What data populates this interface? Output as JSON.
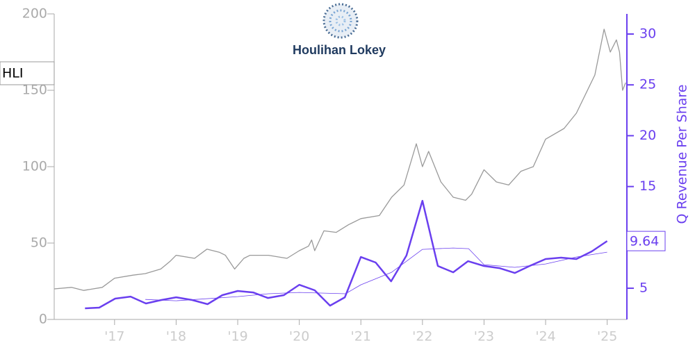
{
  "chart_data": {
    "type": "line",
    "logo_text": "Houlihan Lokey",
    "y2_label": "Q Revenue Per Share",
    "xlim": [
      2016.02,
      2025.32
    ],
    "xticks": [
      {
        "value": 2017,
        "label": "'17"
      },
      {
        "value": 2018,
        "label": "'18"
      },
      {
        "value": 2019,
        "label": "'19"
      },
      {
        "value": 2020,
        "label": "'20"
      },
      {
        "value": 2021,
        "label": "'21"
      },
      {
        "value": 2022,
        "label": "'22"
      },
      {
        "value": 2023,
        "label": "'23"
      },
      {
        "value": 2024,
        "label": "'24"
      },
      {
        "value": 2025,
        "label": "'25"
      }
    ],
    "ylim": [
      0,
      200
    ],
    "yticks": [
      0,
      50,
      100,
      150,
      200
    ],
    "y2lim": [
      1.93,
      31.98
    ],
    "y2ticks": [
      5,
      10,
      15,
      20,
      25,
      30
    ],
    "series": [
      {
        "name": "HLI",
        "color": "#999999",
        "axis": "y",
        "x": [
          2016.02,
          2016.3,
          2016.5,
          2016.8,
          2017.0,
          2017.3,
          2017.5,
          2017.75,
          2017.9,
          2018.0,
          2018.3,
          2018.5,
          2018.7,
          2018.8,
          2018.95,
          2019.1,
          2019.2,
          2019.5,
          2019.8,
          2020.0,
          2020.15,
          2020.2,
          2020.25,
          2020.4,
          2020.6,
          2020.8,
          2021.0,
          2021.3,
          2021.5,
          2021.7,
          2021.9,
          2022.0,
          2022.1,
          2022.3,
          2022.5,
          2022.7,
          2022.8,
          2023.0,
          2023.2,
          2023.4,
          2023.6,
          2023.8,
          2024.0,
          2024.3,
          2024.5,
          2024.8,
          2024.95,
          2025.05,
          2025.15,
          2025.2,
          2025.25,
          2025.3
        ],
        "values": [
          20,
          21,
          19,
          21,
          27,
          29,
          30,
          33,
          38,
          42,
          40,
          46,
          44,
          42,
          33,
          40,
          42,
          42,
          40,
          45,
          48,
          52,
          45,
          58,
          57,
          62,
          66,
          68,
          80,
          88,
          115,
          100,
          110,
          90,
          80,
          78,
          82,
          98,
          90,
          88,
          97,
          100,
          118,
          125,
          135,
          160,
          190,
          175,
          183,
          175,
          150,
          155
        ]
      },
      {
        "name": "Q Revenue Per Share",
        "color": "#6a3fef",
        "axis": "y2",
        "x": [
          2016.52,
          2016.75,
          2017.01,
          2017.26,
          2017.51,
          2017.76,
          2018.0,
          2018.26,
          2018.51,
          2018.75,
          2019.0,
          2019.25,
          2019.49,
          2019.75,
          2020.0,
          2020.25,
          2020.5,
          2020.74,
          2021.0,
          2021.24,
          2021.49,
          2021.74,
          2022.0,
          2022.25,
          2022.5,
          2022.74,
          2023.0,
          2023.25,
          2023.5,
          2023.74,
          2024.0,
          2024.25,
          2024.5,
          2024.75,
          2025.0
        ],
        "values": [
          3.02,
          3.09,
          3.98,
          4.18,
          3.5,
          3.84,
          4.11,
          3.84,
          3.43,
          4.32,
          4.73,
          4.59,
          4.04,
          4.32,
          5.34,
          4.8,
          3.29,
          4.11,
          8.07,
          7.53,
          5.68,
          8.21,
          13.6,
          7.19,
          6.57,
          7.66,
          7.19,
          6.98,
          6.5,
          7.19,
          7.87,
          8.01,
          7.87,
          8.62,
          9.64
        ]
      },
      {
        "color": "#6a3fef",
        "axis": "y2",
        "x": [
          2017.5,
          2018.0,
          2019.0,
          2019.5,
          2020.0,
          2020.75,
          2021.0,
          2021.5,
          2022.0,
          2022.5,
          2022.75,
          2023.0,
          2023.5,
          2024.0,
          2024.5,
          2025.0
        ],
        "values": [
          3.9,
          3.77,
          4.18,
          4.46,
          4.59,
          4.46,
          5.34,
          6.57,
          8.82,
          8.96,
          8.89,
          7.32,
          7.05,
          7.39,
          8.07,
          8.55
        ]
      }
    ]
  }
}
